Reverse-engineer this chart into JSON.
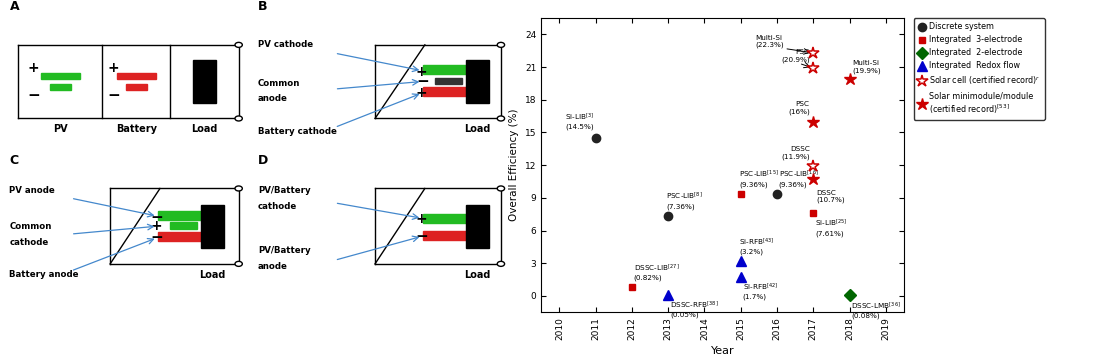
{
  "scatter_points": [
    {
      "label": "Si-LIB",
      "ref": "[3]",
      "year": 2011,
      "efficiency": 14.5,
      "type": "discrete",
      "color": "#222222",
      "marker": "o"
    },
    {
      "label": "DSSC-LIB",
      "ref": "[27]",
      "year": 2012,
      "efficiency": 0.82,
      "type": "3-electrode",
      "color": "#cc0000",
      "marker": "s"
    },
    {
      "label": "PSC-LIB",
      "ref": "[8]",
      "year": 2013,
      "efficiency": 7.36,
      "type": "discrete",
      "color": "#222222",
      "marker": "o"
    },
    {
      "label": "DSSC-RFB",
      "ref": "[38]",
      "year": 2013,
      "efficiency": 0.05,
      "type": "redox",
      "color": "#0000cc",
      "marker": "^"
    },
    {
      "label": "Si-RFB",
      "ref": "[43]",
      "year": 2015,
      "efficiency": 3.2,
      "type": "redox",
      "color": "#0000cc",
      "marker": "^"
    },
    {
      "label": "Si-RFB",
      "ref": "[42]",
      "year": 2015,
      "efficiency": 1.7,
      "type": "redox",
      "color": "#0000cc",
      "marker": "^"
    },
    {
      "label": "PSC-LIB",
      "ref": "[15]",
      "year": 2015,
      "efficiency": 9.36,
      "type": "3-electrode",
      "color": "#cc0000",
      "marker": "s"
    },
    {
      "label": "PSC-LIB",
      "ref": "[16]",
      "year": 2016,
      "efficiency": 9.36,
      "type": "discrete",
      "color": "#222222",
      "marker": "o"
    },
    {
      "label": "Si-LIB",
      "ref": "[25]",
      "year": 2017,
      "efficiency": 7.61,
      "type": "3-electrode",
      "color": "#cc0000",
      "marker": "s"
    },
    {
      "label": "PSC",
      "ref": "",
      "year": 2017,
      "efficiency": 16.0,
      "type": "minimodule",
      "color": "#cc0000",
      "marker": "*"
    },
    {
      "label": "DSSC",
      "ref": "",
      "year": 2017,
      "efficiency": 11.9,
      "type": "cell_record",
      "color": "#cc0000",
      "marker": "*"
    },
    {
      "label": "DSSC",
      "ref": "",
      "year": 2017,
      "efficiency": 10.7,
      "type": "minimodule",
      "color": "#cc0000",
      "marker": "*"
    },
    {
      "label": "DSSC-LMB",
      "ref": "[36]",
      "year": 2018,
      "efficiency": 0.08,
      "type": "2-electrode",
      "color": "#006600",
      "marker": "D"
    },
    {
      "label": "Multi-Si",
      "ref": "",
      "year": 2017,
      "efficiency": 22.3,
      "type": "cell_record",
      "color": "#cc0000",
      "marker": "*"
    },
    {
      "label": "Multi-Si",
      "ref": "",
      "year": 2018,
      "efficiency": 19.9,
      "type": "minimodule",
      "color": "#cc0000",
      "marker": "*"
    },
    {
      "label": "PSC",
      "ref": "",
      "year": 2017,
      "efficiency": 20.9,
      "type": "cell_record",
      "color": "#cc0000",
      "marker": "*"
    }
  ],
  "xlim": [
    2009.5,
    2019.5
  ],
  "ylim": [
    -1.5,
    25.5
  ],
  "yticks": [
    0,
    3,
    6,
    9,
    12,
    15,
    18,
    21,
    24
  ],
  "xticks": [
    2010,
    2011,
    2012,
    2013,
    2014,
    2015,
    2016,
    2017,
    2018,
    2019
  ],
  "ylabel": "Overall Efficiency (%)",
  "xlabel": "Year",
  "background_color": "#ffffff"
}
